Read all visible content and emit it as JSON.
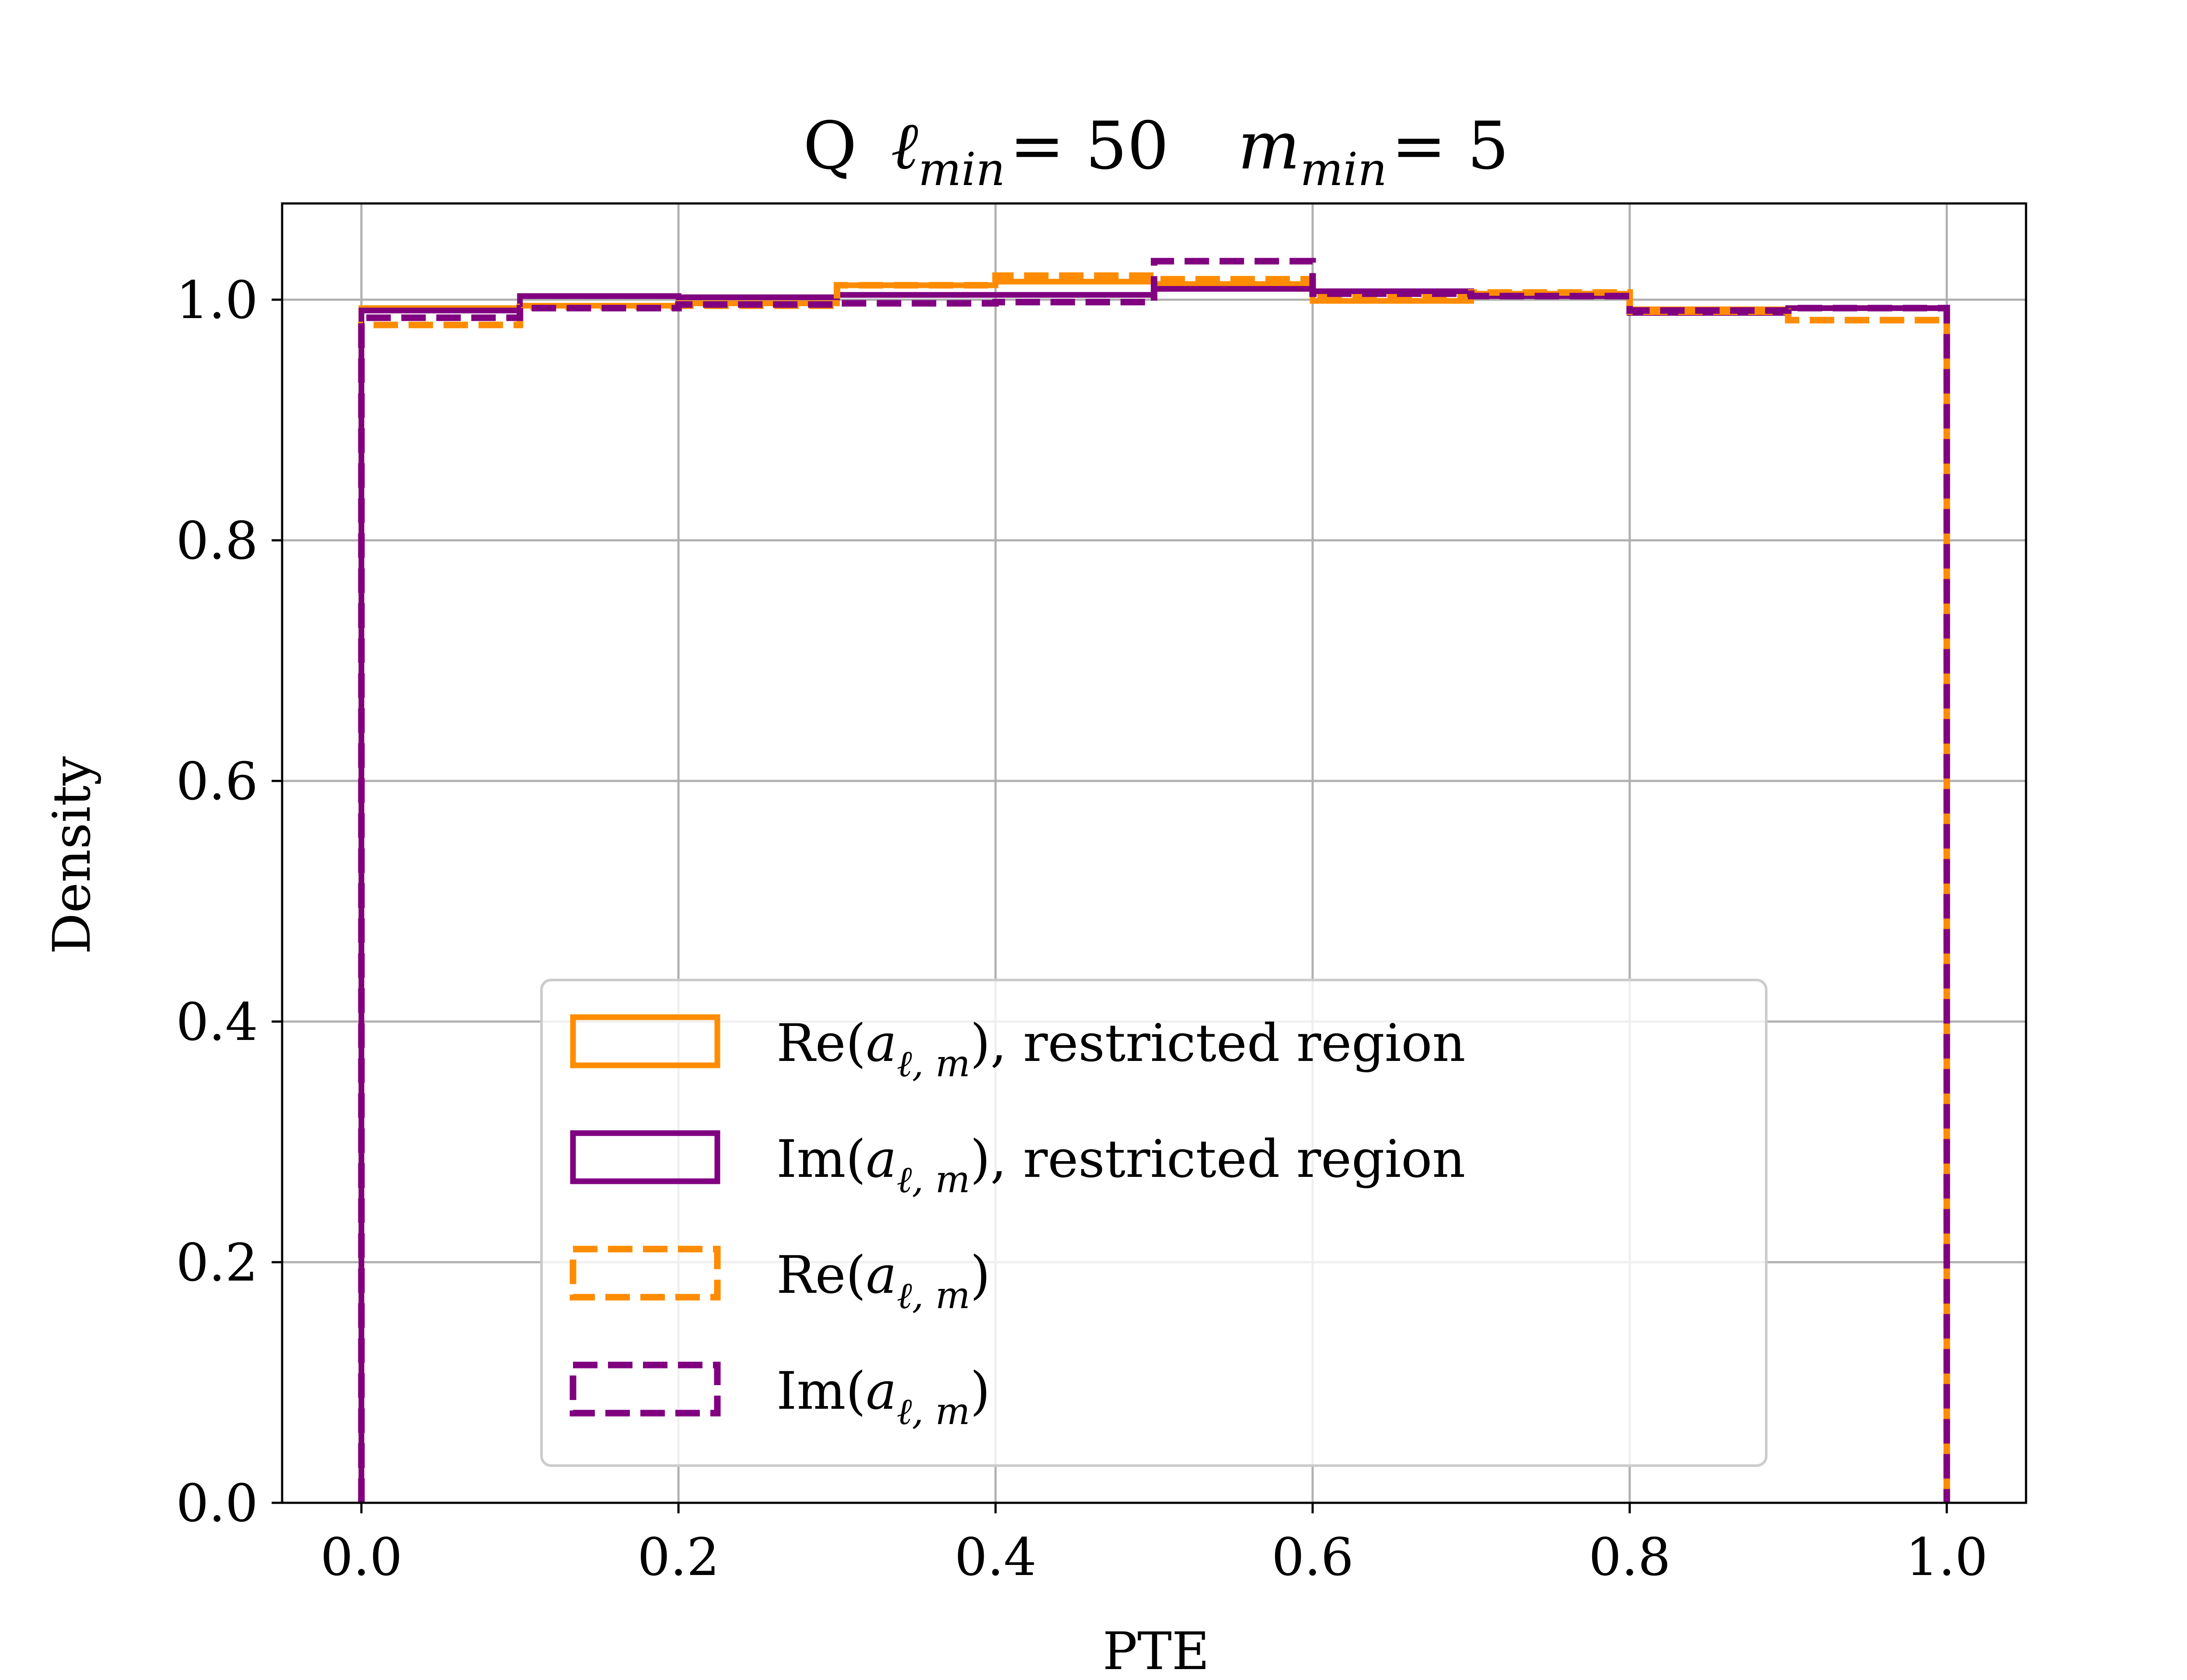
{
  "chart_data": {
    "type": "histogram-step",
    "title": {
      "prefix": "Q",
      "l_symbol": "ℓ",
      "l_sub": "min",
      "l_value": "= 50",
      "m_symbol": "m",
      "m_sub": "min",
      "m_value": "= 5"
    },
    "xlabel": "PTE",
    "ylabel": "Density",
    "xlim": [
      -0.05,
      1.05
    ],
    "ylim": [
      0.0,
      1.08
    ],
    "xticks": [
      0.0,
      0.2,
      0.4,
      0.6,
      0.8,
      1.0
    ],
    "xtick_labels": [
      "0.0",
      "0.2",
      "0.4",
      "0.6",
      "0.8",
      "1.0"
    ],
    "yticks": [
      0.0,
      0.2,
      0.4,
      0.6,
      0.8,
      1.0
    ],
    "ytick_labels": [
      "0.0",
      "0.2",
      "0.4",
      "0.6",
      "0.8",
      "1.0"
    ],
    "grid": true,
    "legend_position": "lower center",
    "bin_edges": [
      0.0,
      0.1,
      0.2,
      0.3,
      0.4,
      0.5,
      0.6,
      0.7,
      0.8,
      0.9,
      1.0
    ],
    "series": [
      {
        "label_prefix": "Re(",
        "label_suffix": "), restricted region",
        "color": "#ff8c00",
        "linestyle": "solid",
        "values": [
          0.993,
          0.995,
          0.997,
          1.012,
          1.015,
          1.013,
          0.999,
          1.005,
          0.992,
          0.993
        ]
      },
      {
        "label_prefix": "Im(",
        "label_suffix": "), restricted region",
        "color": "#800080",
        "linestyle": "solid",
        "values": [
          0.991,
          1.003,
          1.002,
          1.004,
          1.004,
          1.009,
          1.007,
          1.003,
          0.989,
          0.993
        ]
      },
      {
        "label_prefix": "Re(",
        "label_suffix": ")",
        "color": "#ff8c00",
        "linestyle": "dashed",
        "values": [
          0.979,
          0.994,
          0.995,
          1.012,
          1.02,
          1.017,
          1.002,
          1.006,
          0.99,
          0.983
        ]
      },
      {
        "label_prefix": "Im(",
        "label_suffix": ")",
        "color": "#800080",
        "linestyle": "dashed",
        "values": [
          0.985,
          0.993,
          0.996,
          0.997,
          0.998,
          1.032,
          1.005,
          1.003,
          0.991,
          0.993
        ]
      }
    ],
    "legend_math": {
      "a": "a",
      "sub": "ℓ, m"
    }
  }
}
